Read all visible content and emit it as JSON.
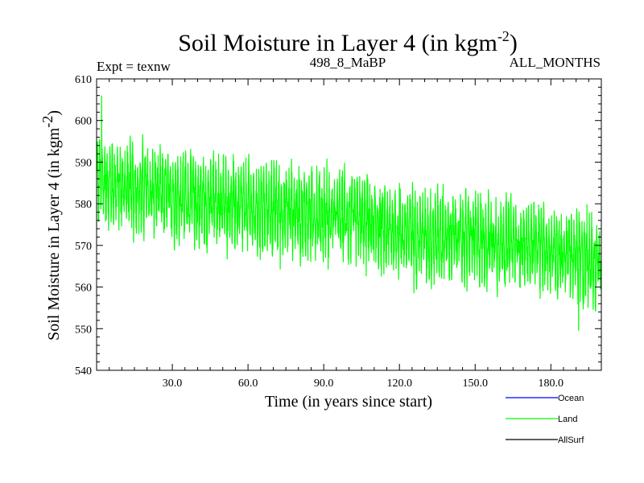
{
  "chart_data": {
    "type": "line",
    "title": "Soil Moisture in Layer 4 (in kgm",
    "title_sup": "-2",
    "title_close": ")",
    "expt_label": "Expt = texnw",
    "run_label": "498_8_MaBP",
    "period_label": "ALL_MONTHS",
    "xlabel": "Time (in years since start)",
    "ylabel": "Soil Moisture in Layer 4 (in kgm",
    "ylabel_sup": "-2",
    "ylabel_close": ")",
    "xlim": [
      0,
      200
    ],
    "ylim": [
      540,
      610
    ],
    "x_ticks": [
      30,
      60,
      90,
      120,
      150,
      180
    ],
    "x_tick_labels": [
      "30.0",
      "60.0",
      "90.0",
      "120.0",
      "150.0",
      "180.0"
    ],
    "y_ticks": [
      540,
      550,
      560,
      570,
      580,
      590,
      600,
      610
    ],
    "y_tick_labels": [
      "540",
      "550",
      "560",
      "570",
      "580",
      "590",
      "600",
      "610"
    ],
    "series": [
      {
        "name": "Land",
        "color": "#00ff00",
        "trend": {
          "x": [
            0,
            10,
            20,
            40,
            60,
            80,
            100,
            120,
            140,
            160,
            180,
            200
          ],
          "y": [
            586,
            584,
            583,
            581,
            579,
            578,
            577,
            573,
            572,
            571,
            569,
            566
          ]
        },
        "seasonal_amplitude": 7,
        "peaks": {
          "x": [
            2,
            120,
            191,
            193
          ],
          "y": [
            606,
            585,
            549.5,
            556
          ]
        }
      }
    ],
    "legend": [
      {
        "label": "Ocean",
        "color": "#0000ff"
      },
      {
        "label": "Land",
        "color": "#00ff00"
      },
      {
        "label": "AllSurf",
        "color": "#000000"
      }
    ]
  }
}
